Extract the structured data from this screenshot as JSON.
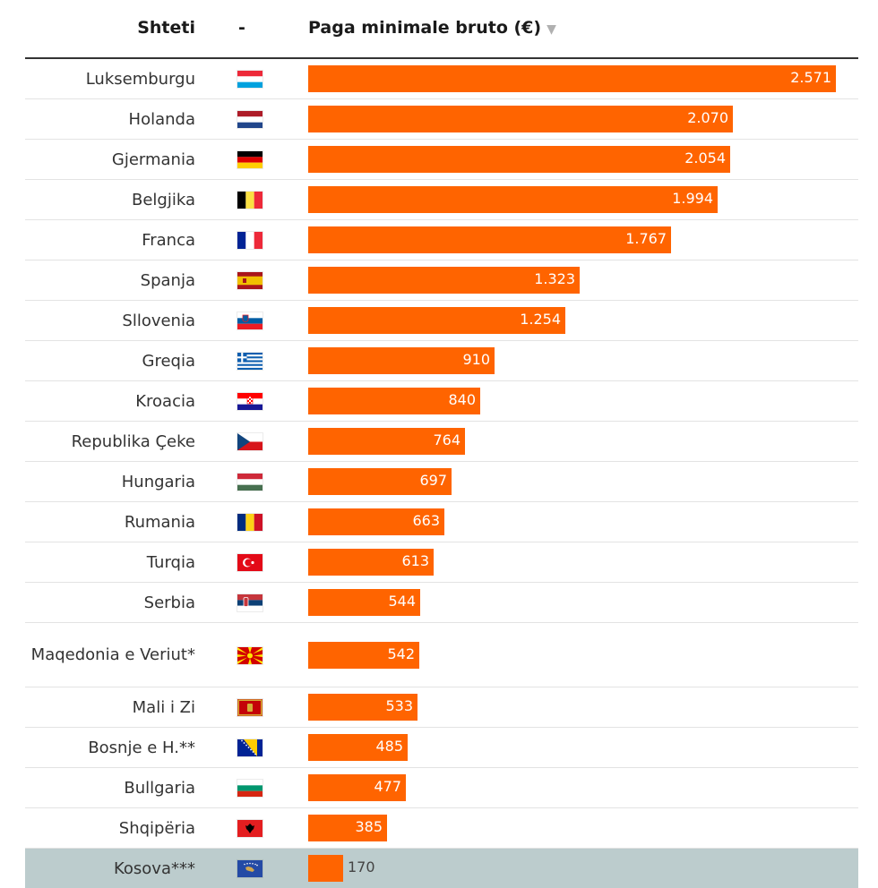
{
  "table": {
    "headers": {
      "country": "Shteti",
      "flag": "-",
      "value": "Paga minimale bruto (€)",
      "sort_icon": "▼"
    },
    "rows": [
      {
        "country": "Luksemburgu",
        "flag": "flag-luxembourg-icon",
        "value": 2571,
        "label": "2.571"
      },
      {
        "country": "Holanda",
        "flag": "flag-netherlands-icon",
        "value": 2070,
        "label": "2.070"
      },
      {
        "country": "Gjermania",
        "flag": "flag-germany-icon",
        "value": 2054,
        "label": "2.054"
      },
      {
        "country": "Belgjika",
        "flag": "flag-belgium-icon",
        "value": 1994,
        "label": "1.994"
      },
      {
        "country": "Franca",
        "flag": "flag-france-icon",
        "value": 1767,
        "label": "1.767"
      },
      {
        "country": "Spanja",
        "flag": "flag-spain-icon",
        "value": 1323,
        "label": "1.323"
      },
      {
        "country": "Sllovenia",
        "flag": "flag-slovenia-icon",
        "value": 1254,
        "label": "1.254"
      },
      {
        "country": "Greqia",
        "flag": "flag-greece-icon",
        "value": 910,
        "label": "910"
      },
      {
        "country": "Kroacia",
        "flag": "flag-croatia-icon",
        "value": 840,
        "label": "840"
      },
      {
        "country": "Republika Çeke",
        "flag": "flag-czech-republic-icon",
        "value": 764,
        "label": "764"
      },
      {
        "country": "Hungaria",
        "flag": "flag-hungary-icon",
        "value": 697,
        "label": "697"
      },
      {
        "country": "Rumania",
        "flag": "flag-romania-icon",
        "value": 663,
        "label": "663"
      },
      {
        "country": "Turqia",
        "flag": "flag-turkey-icon",
        "value": 613,
        "label": "613"
      },
      {
        "country": "Serbia",
        "flag": "flag-serbia-icon",
        "value": 544,
        "label": "544"
      },
      {
        "country": "Maqedonia e Veriut*",
        "flag": "flag-north-macedonia-icon",
        "value": 542,
        "label": "542"
      },
      {
        "country": "Mali i Zi",
        "flag": "flag-montenegro-icon",
        "value": 533,
        "label": "533"
      },
      {
        "country": "Bosnje e H.**",
        "flag": "flag-bosnia-icon",
        "value": 485,
        "label": "485"
      },
      {
        "country": "Bullgaria",
        "flag": "flag-bulgaria-icon",
        "value": 477,
        "label": "477"
      },
      {
        "country": "Shqipëria",
        "flag": "flag-albania-icon",
        "value": 385,
        "label": "385"
      },
      {
        "country": "Kosova***",
        "flag": "flag-kosovo-icon",
        "value": 170,
        "label": "170",
        "highlight": true
      }
    ]
  },
  "colors": {
    "bar": "#ff6400",
    "highlight_row": "#bccccd",
    "value_inside": "#ffffff",
    "value_outside": "#444444"
  },
  "chart_data": {
    "type": "bar",
    "orientation": "horizontal",
    "title": "",
    "xlabel": "Paga minimale bruto (€)",
    "ylabel": "Shteti",
    "categories": [
      "Luksemburgu",
      "Holanda",
      "Gjermania",
      "Belgjika",
      "Franca",
      "Spanja",
      "Sllovenia",
      "Greqia",
      "Kroacia",
      "Republika Çeke",
      "Hungaria",
      "Rumania",
      "Turqia",
      "Serbia",
      "Maqedonia e Veriut*",
      "Mali i Zi",
      "Bosnje e H.**",
      "Bullgaria",
      "Shqipëria",
      "Kosova***"
    ],
    "values": [
      2571,
      2070,
      2054,
      1994,
      1767,
      1323,
      1254,
      910,
      840,
      764,
      697,
      663,
      613,
      544,
      542,
      533,
      485,
      477,
      385,
      170
    ],
    "xlim": [
      0,
      2571
    ],
    "grid": false,
    "legend": "none"
  }
}
